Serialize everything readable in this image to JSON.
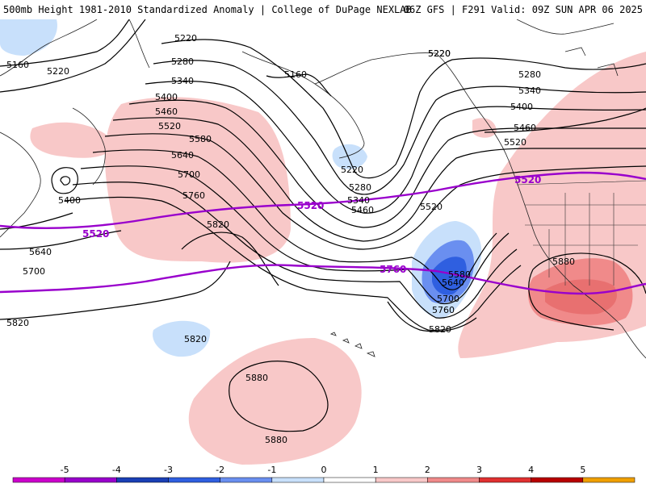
{
  "header": {
    "left_title": "500mb Height 1981-2010 Standardized Anomaly | College of DuPage NEXLAB",
    "right_title": "06Z GFS | F291 Valid: 09Z SUN APR 06 2025"
  },
  "contours": {
    "black_labels": [
      "5160",
      "5220",
      "5220",
      "5160",
      "5220",
      "5280",
      "5340",
      "5400",
      "5460",
      "5520",
      "5580",
      "5640",
      "5700",
      "5760",
      "5820",
      "5400",
      "5640",
      "5700",
      "5820",
      "5820",
      "5220",
      "5280",
      "5340",
      "5460",
      "5520",
      "5580",
      "5640",
      "5700",
      "5760",
      "5820",
      "5220",
      "5280",
      "5340",
      "5400",
      "5460",
      "5520",
      "5880",
      "5880",
      "5880"
    ],
    "purple_labels": [
      "5520",
      "5520",
      "5520",
      "5760"
    ]
  },
  "colorbar": {
    "ticks": [
      "-5",
      "-4",
      "-3",
      "-2",
      "-1",
      "0",
      "1",
      "2",
      "3",
      "4",
      "5"
    ],
    "colors": [
      "#cc00cc",
      "#9900cc",
      "#1a3fb5",
      "#2f5fe0",
      "#6a8ff0",
      "#c8e0fb",
      "#ffffff",
      "#f8c8c8",
      "#f08a8a",
      "#e03030",
      "#b80000",
      "#f0a000"
    ]
  }
}
